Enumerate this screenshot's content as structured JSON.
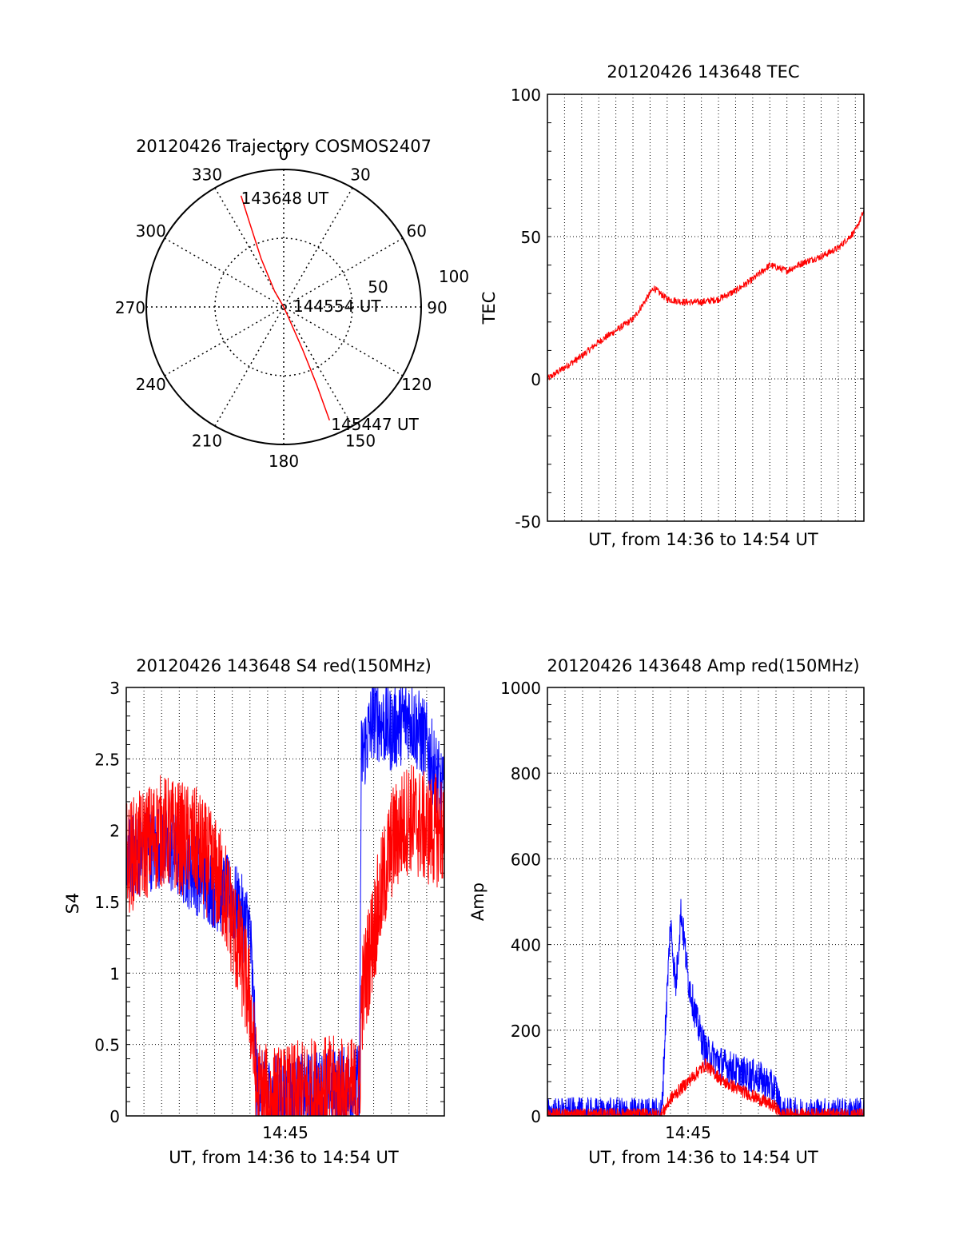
{
  "chart_data": [
    {
      "type": "polar",
      "title": "20120426 Trajectory COSMOS2407",
      "angle_labels": [
        "0",
        "30",
        "60",
        "90",
        "120",
        "150",
        "180",
        "210",
        "240",
        "270",
        "300",
        "330"
      ],
      "radius_labels": [
        "50",
        "100"
      ],
      "grid": true,
      "series": [
        {
          "color": "#ff0000",
          "points": [
            {
              "azimuth": 339,
              "elevation": 12
            },
            {
              "azimuth": 338,
              "elevation": 30
            },
            {
              "azimuth": 335,
              "elevation": 55
            },
            {
              "azimuth": 330,
              "elevation": 78
            },
            {
              "azimuth": 320,
              "elevation": 90
            },
            {
              "azimuth": 155,
              "elevation": 85
            },
            {
              "azimuth": 156,
              "elevation": 60
            },
            {
              "azimuth": 157,
              "elevation": 35
            },
            {
              "azimuth": 158,
              "elevation": 10
            }
          ]
        }
      ],
      "annotations": [
        {
          "text": "143648 UT",
          "azimuth": 339,
          "elevation": 12
        },
        {
          "text": "144554 UT",
          "azimuth": 0,
          "elevation": 90
        },
        {
          "text": "145447 UT",
          "azimuth": 158,
          "elevation": 10
        }
      ]
    },
    {
      "type": "line",
      "title": "20120426 143648 TEC",
      "xlabel": "UT, from 14:36 to 14:54 UT",
      "ylabel": "TEC",
      "xlim": [
        0,
        18.5
      ],
      "ylim": [
        -50,
        100
      ],
      "yticks": [
        -50,
        0,
        50,
        100
      ],
      "grid": true,
      "series": [
        {
          "color": "#ff0000",
          "x": [
            0,
            1,
            2,
            3,
            4,
            5,
            6,
            6.2,
            7,
            8,
            9,
            10,
            11,
            12,
            13,
            14,
            15,
            16,
            17,
            18,
            18.5
          ],
          "y": [
            0,
            4,
            8,
            13,
            17,
            21,
            30,
            32,
            28,
            27,
            27,
            28,
            31,
            35,
            40,
            38,
            41,
            43,
            46,
            52,
            59
          ],
          "noise": 1.2
        }
      ]
    },
    {
      "type": "line",
      "title": "20120426 143648 S4 red(150MHz)",
      "xlabel": "UT, from 14:36 to 14:54 UT",
      "ylabel": "S4",
      "xlim": [
        0,
        18
      ],
      "ylim": [
        0,
        3
      ],
      "yticks": [
        0,
        0.5,
        1,
        1.5,
        2,
        2.5,
        3
      ],
      "xtick_labels": [
        {
          "x": 9,
          "label": "14:45"
        }
      ],
      "grid": true,
      "series": [
        {
          "color": "#0000ff",
          "x": [
            0,
            2,
            4,
            6,
            7,
            7.4,
            8,
            9,
            10,
            11,
            13.2,
            13.3,
            14,
            15,
            16,
            17,
            18
          ],
          "y": [
            1.8,
            1.9,
            1.7,
            1.5,
            1.3,
            0.2,
            0.13,
            0.13,
            0.14,
            0.17,
            0.2,
            2.5,
            2.8,
            2.7,
            2.8,
            2.6,
            2.2
          ],
          "noise": 0.3
        },
        {
          "color": "#ff0000",
          "x": [
            0,
            2,
            4,
            5.5,
            6.5,
            7,
            7.4,
            8,
            9,
            10,
            11,
            13.2,
            13.3,
            14,
            15,
            16,
            17,
            18
          ],
          "y": [
            1.8,
            2.0,
            1.9,
            1.6,
            1.1,
            0.8,
            0.15,
            0.1,
            0.1,
            0.14,
            0.17,
            0.15,
            0.8,
            1.3,
            1.9,
            2.1,
            2.0,
            2.0
          ],
          "noise": 0.4
        }
      ]
    },
    {
      "type": "line",
      "title": "20120426 143648 Amp red(150MHz)",
      "xlabel": "UT, from 14:36 to 14:54 UT",
      "ylabel": "Amp",
      "xlim": [
        0,
        18
      ],
      "ylim": [
        0,
        1000
      ],
      "yticks": [
        0,
        200,
        400,
        600,
        800,
        1000
      ],
      "xtick_labels": [
        {
          "x": 8,
          "label": "14:45"
        }
      ],
      "grid": true,
      "series": [
        {
          "color": "#0000ff",
          "x": [
            0,
            6.5,
            6.7,
            7,
            7.3,
            7.6,
            8,
            8.5,
            9,
            10,
            11,
            12,
            13,
            13.3,
            14,
            16,
            18
          ],
          "y": [
            3,
            3,
            200,
            450,
            300,
            480,
            320,
            220,
            150,
            120,
            100,
            90,
            60,
            3,
            3,
            3,
            3
          ],
          "noise": 40
        },
        {
          "color": "#ff0000",
          "x": [
            0,
            6.5,
            7,
            8,
            9,
            10,
            11,
            12,
            13,
            13.3,
            14,
            18
          ],
          "y": [
            3,
            3,
            40,
            80,
            120,
            80,
            60,
            40,
            20,
            3,
            3,
            3
          ],
          "noise": 15
        }
      ]
    }
  ]
}
